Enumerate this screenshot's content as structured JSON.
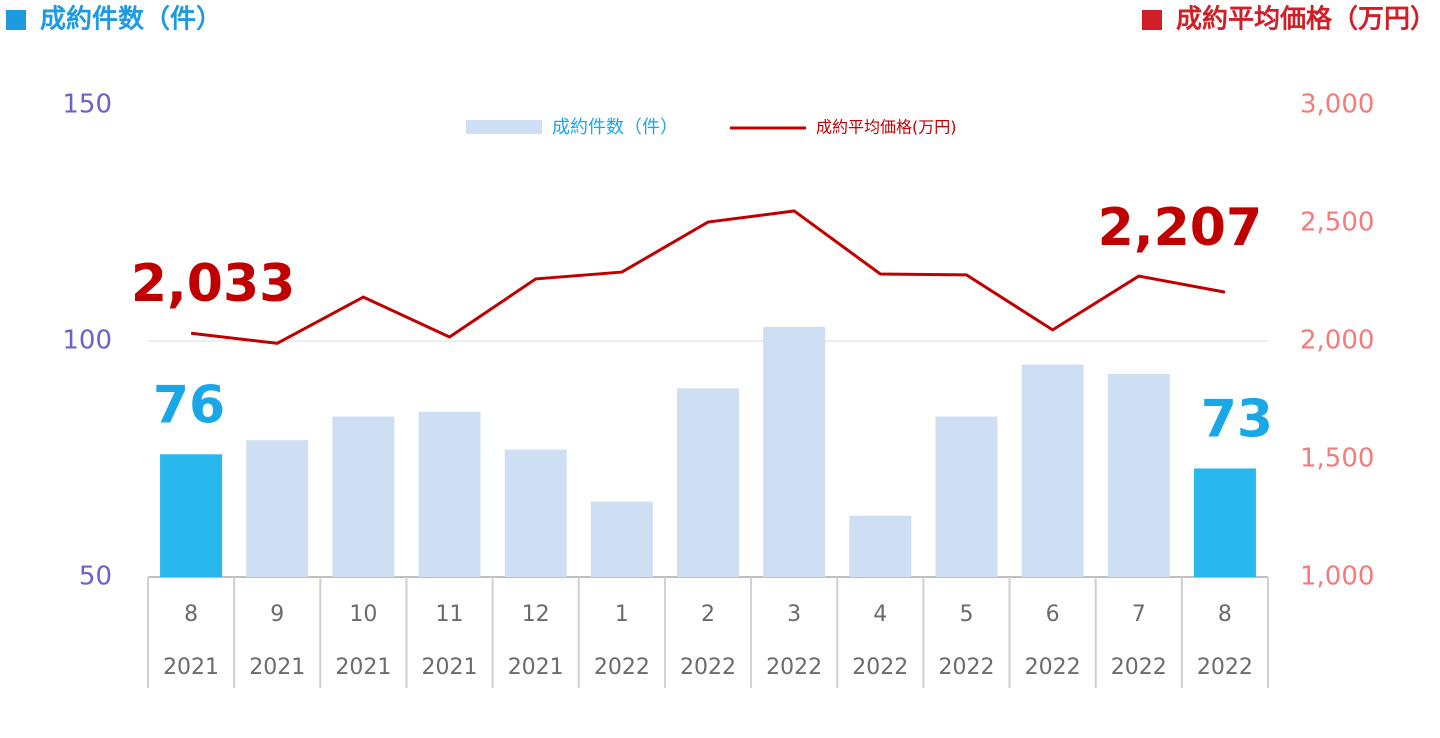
{
  "chart_data": {
    "type": "bar_line",
    "y_title": "成約件数（件）",
    "y_title_color": "#1e9be0",
    "y2_title": "成約平均価格（万円）",
    "y2_title_color": "#d01f26",
    "categories": [
      "8",
      "9",
      "10",
      "11",
      "12",
      "1",
      "2",
      "3",
      "4",
      "5",
      "6",
      "7",
      "8"
    ],
    "years": [
      "2021",
      "2021",
      "2021",
      "2021",
      "2021",
      "2022",
      "2022",
      "2022",
      "2022",
      "2022",
      "2022",
      "2022",
      "2022"
    ],
    "series": [
      {
        "name": "成約件数（件）",
        "type": "bar",
        "color": "#cfdff3",
        "colors": [
          "#29b8ee",
          "#cfdff3",
          "#cfdff3",
          "#cfdff3",
          "#cfdff3",
          "#cfdff3",
          "#cfdff3",
          "#cfdff3",
          "#cfdff3",
          "#cfdff3",
          "#cfdff3",
          "#cfdff3",
          "#29b8ee"
        ],
        "label_color": "#1aa7e8",
        "values": [
          76,
          79,
          84,
          85,
          77,
          66,
          90,
          103,
          63,
          84,
          95,
          93,
          73
        ],
        "value_labels": [
          "76",
          null,
          null,
          null,
          null,
          null,
          null,
          null,
          null,
          null,
          null,
          null,
          "73"
        ]
      },
      {
        "name": "成約平均価格(万円)",
        "type": "line",
        "axis": "y2",
        "color": "#c00000",
        "label_color": "#c00000",
        "values": [
          2033,
          1990,
          2186,
          2017,
          2263,
          2292,
          2504,
          2551,
          2284,
          2280,
          2047,
          2275,
          2207
        ],
        "value_labels": [
          "2,033",
          null,
          null,
          null,
          null,
          null,
          null,
          null,
          null,
          null,
          null,
          null,
          "2,207"
        ]
      }
    ],
    "ylim": [
      50,
      150
    ],
    "yticks": [
      50,
      100,
      150
    ],
    "y2lim": [
      1000,
      3000
    ],
    "y2ticks": [
      {
        "value": 1000,
        "label": "1,000"
      },
      {
        "value": 1500,
        "label": "1,500"
      },
      {
        "value": 2000,
        "label": "2,000"
      },
      {
        "value": 2500,
        "label": "2,500"
      },
      {
        "value": 3000,
        "label": "3,000"
      }
    ],
    "grid": true,
    "legend": "top"
  }
}
